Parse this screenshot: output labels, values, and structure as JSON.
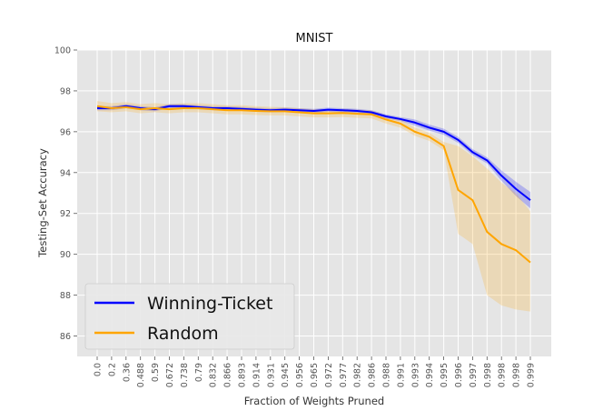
{
  "chart_data": {
    "type": "line",
    "title": "MNIST",
    "xlabel": "Fraction of Weights Pruned",
    "ylabel": "Testing-Set Accuracy",
    "ylim": [
      85,
      100
    ],
    "yticks": [
      "86",
      "88",
      "90",
      "92",
      "94",
      "96",
      "98",
      "100"
    ],
    "categories": [
      "0.0",
      "0.2",
      "0.36",
      "0.488",
      "0.59",
      "0.672",
      "0.738",
      "0.79",
      "0.832",
      "0.866",
      "0.893",
      "0.914",
      "0.931",
      "0.945",
      "0.956",
      "0.965",
      "0.972",
      "0.977",
      "0.982",
      "0.986",
      "0.988",
      "0.991",
      "0.993",
      "0.994",
      "0.995",
      "0.996",
      "0.997",
      "0.998",
      "0.998",
      "0.998",
      "0.999"
    ],
    "grid": true,
    "legend_position": "bottom-left",
    "series": [
      {
        "name": "Winning-Ticket",
        "color": "#0000ff",
        "values": [
          97.15,
          97.15,
          97.25,
          97.15,
          97.1,
          97.25,
          97.25,
          97.2,
          97.15,
          97.15,
          97.12,
          97.08,
          97.05,
          97.08,
          97.05,
          97.02,
          97.08,
          97.05,
          97.02,
          96.95,
          96.75,
          96.62,
          96.45,
          96.2,
          96.0,
          95.6,
          95.0,
          94.6,
          93.85,
          93.2,
          92.65
        ],
        "band_lower": [
          97.05,
          97.05,
          97.15,
          97.05,
          97.0,
          97.15,
          97.15,
          97.1,
          97.05,
          97.05,
          97.02,
          96.98,
          96.95,
          96.98,
          96.95,
          96.92,
          96.98,
          96.95,
          96.92,
          96.85,
          96.65,
          96.52,
          96.3,
          96.05,
          95.85,
          95.45,
          94.85,
          94.45,
          93.6,
          92.85,
          92.25
        ],
        "band_upper": [
          97.25,
          97.25,
          97.35,
          97.25,
          97.2,
          97.35,
          97.35,
          97.3,
          97.25,
          97.25,
          97.22,
          97.18,
          97.15,
          97.18,
          97.15,
          97.12,
          97.18,
          97.15,
          97.12,
          97.05,
          96.85,
          96.72,
          96.6,
          96.35,
          96.15,
          95.75,
          95.15,
          94.75,
          94.1,
          93.55,
          93.05
        ]
      },
      {
        "name": "Random",
        "color": "#ffa500",
        "values": [
          97.25,
          97.15,
          97.2,
          97.1,
          97.15,
          97.1,
          97.15,
          97.15,
          97.1,
          97.05,
          97.05,
          97.02,
          97.0,
          97.0,
          96.95,
          96.9,
          96.9,
          96.92,
          96.88,
          96.85,
          96.6,
          96.4,
          96.0,
          95.75,
          95.3,
          93.15,
          92.65,
          91.1,
          90.5,
          90.2,
          89.6
        ],
        "band_lower": [
          97.0,
          96.95,
          97.0,
          96.9,
          96.95,
          96.9,
          96.95,
          96.95,
          96.9,
          96.85,
          96.85,
          96.82,
          96.8,
          96.8,
          96.75,
          96.7,
          96.7,
          96.72,
          96.68,
          96.65,
          96.4,
          96.2,
          95.8,
          95.55,
          95.1,
          91.0,
          90.5,
          88.0,
          87.5,
          87.3,
          87.2
        ],
        "band_upper": [
          97.5,
          97.4,
          97.45,
          97.35,
          97.4,
          97.35,
          97.4,
          97.4,
          97.35,
          97.3,
          97.3,
          97.25,
          97.22,
          97.2,
          97.15,
          97.1,
          97.1,
          97.12,
          97.08,
          97.05,
          96.8,
          96.6,
          96.2,
          95.95,
          95.5,
          95.3,
          94.8,
          94.2,
          93.5,
          93.0,
          92.1
        ]
      }
    ]
  }
}
